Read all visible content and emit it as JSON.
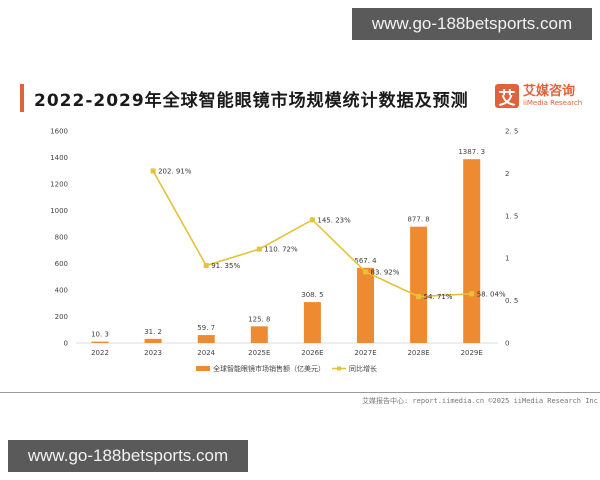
{
  "watermarks": {
    "top": "www.go-188betsports.com",
    "bottom": "www.go-188betsports.com"
  },
  "title": "2022-2029年全球智能眼镜市场规模统计数据及预测",
  "logo": {
    "glyph": "艾",
    "cn": "艾媒咨询",
    "en": "iiMedia Research"
  },
  "footer": "艾媒报告中心: report.iimedia.cn   ©2025   iiMedia Research Inc",
  "colors": {
    "bar": "#ee8a30",
    "line": "#e6c23a",
    "accent": "#e0623c"
  },
  "chart_data": {
    "type": "bar",
    "title": "2022-2029年全球智能眼镜市场规模统计数据及预测",
    "categories": [
      "2022",
      "2023",
      "2024",
      "2025E",
      "2026E",
      "2027E",
      "2028E",
      "2029E"
    ],
    "series": [
      {
        "name": "全球智能眼镜市场销售额（亿美元）",
        "type": "bar",
        "axis": "left",
        "values": [
          10.3,
          31.2,
          59.7,
          125.8,
          308.5,
          567.4,
          877.8,
          1387.3
        ],
        "labels": [
          "10.3",
          "31.2",
          "59.7",
          "125.8",
          "308.5",
          "567.4",
          "877.8",
          "1387.3"
        ]
      },
      {
        "name": "同比增长",
        "type": "line",
        "axis": "right",
        "values": [
          null,
          2.0291,
          0.9135,
          1.1072,
          1.4523,
          0.8392,
          0.5471,
          0.5804
        ],
        "labels": [
          "",
          "202.91%",
          "91.35%",
          "110.72%",
          "145.23%",
          "83.92%",
          "54.71%",
          "58.04%"
        ]
      }
    ],
    "left_axis": {
      "ticks": [
        "0",
        "200",
        "400",
        "600",
        "800",
        "1000",
        "1200",
        "1400",
        "1600"
      ],
      "ylim": [
        0,
        1600
      ]
    },
    "right_axis": {
      "ticks": [
        "0",
        "0.5",
        "1",
        "1.5",
        "2",
        "2.5"
      ],
      "ylim": [
        0,
        2.5
      ]
    },
    "legend": {
      "position": "bottom",
      "items": [
        "全球智能眼镜市场销售额（亿美元）",
        "同比增长"
      ]
    },
    "grid": false
  }
}
